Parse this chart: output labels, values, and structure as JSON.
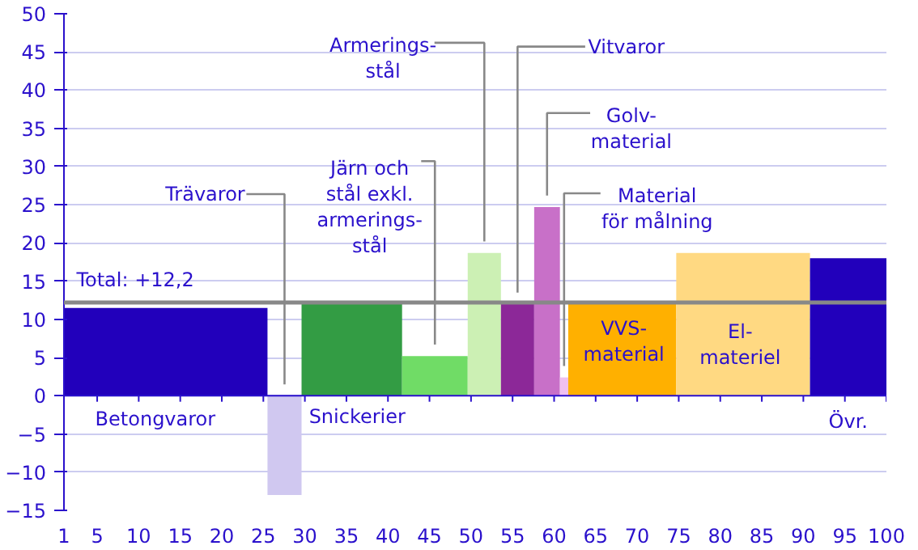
{
  "chart_data": {
    "type": "histogram",
    "bins": [
      1,
      25.5,
      29.6,
      41.7,
      49.6,
      53.6,
      57.6,
      60.7,
      61.7,
      74.7,
      90.8,
      100
    ],
    "values": [
      11.5,
      -13,
      12,
      5.2,
      18.7,
      12,
      24.7,
      2.4,
      12,
      18.7,
      18
    ],
    "colors": [
      "#2200bb",
      "#d0c8f0",
      "#339c44",
      "#70dc66",
      "#ccf0b4",
      "#8c2898",
      "#c870c8",
      "#f0c0f0",
      "#ffb000",
      "#ffd982",
      "#2200bb"
    ],
    "xlim": [
      1,
      100
    ],
    "xticks": [
      1,
      5,
      10,
      15,
      20,
      25,
      30,
      35,
      40,
      45,
      50,
      55,
      60,
      65,
      70,
      75,
      80,
      85,
      90,
      95,
      100
    ],
    "ylim": [
      -15,
      50
    ],
    "yticks": [
      -15,
      -10,
      -5,
      0,
      5,
      10,
      15,
      20,
      25,
      30,
      35,
      40,
      45,
      50
    ],
    "grid": "y",
    "ref_lines": [
      {
        "axis": "y",
        "value": 12.2,
        "label": "Total: +12,2",
        "color": "#888888"
      },
      {
        "axis": "y",
        "value": 0,
        "color": "#2a10cc"
      }
    ],
    "categories": [
      "Betongvaror",
      "Trävaror",
      "Snickerier",
      "Järn och\nstål exkl.\narmerings-\nstål",
      "Armerings-\nstål",
      "Vitvaror",
      "Golv-\nmaterial",
      "Material\nför målning",
      "VVS-\nmaterial",
      "El-\nmateriel",
      "Övr."
    ]
  }
}
